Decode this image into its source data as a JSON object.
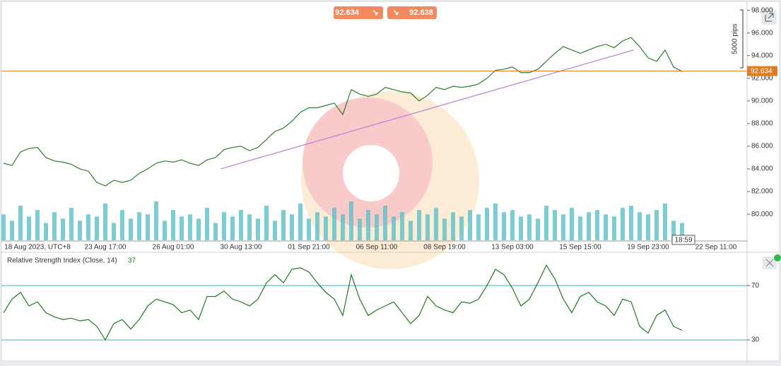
{
  "toolbar": {
    "sell": 92.634,
    "buy": 92.638
  },
  "chart_data": [
    {
      "type": "line",
      "categories": [
        null,
        null,
        null,
        null,
        "18 Aug 2023, UTC+8",
        null,
        null,
        null,
        null,
        null,
        null,
        null,
        "23 Aug 17:00",
        null,
        null,
        null,
        null,
        null,
        null,
        null,
        "26 Aug 01:00",
        null,
        null,
        null,
        null,
        null,
        null,
        null,
        "30 Aug 13:00",
        null,
        null,
        null,
        null,
        null,
        null,
        null,
        "01 Sep 21:00",
        null,
        null,
        null,
        null,
        null,
        null,
        null,
        "06 Sep 11:00",
        null,
        null,
        null,
        null,
        null,
        null,
        null,
        "08 Sep 19:00",
        null,
        null,
        null,
        null,
        null,
        null,
        null,
        "13 Sep 03:00",
        null,
        null,
        null,
        null,
        null,
        null,
        null,
        "15 Sep 15:00",
        null,
        null,
        null,
        null,
        null,
        null,
        null,
        "19 Sep 23:00",
        null,
        null,
        null,
        null,
        null,
        null,
        null,
        "22 Sep 11:00",
        null,
        null,
        null
      ],
      "values": [
        84.5,
        84.3,
        85.5,
        85.8,
        85.9,
        85.0,
        84.7,
        84.6,
        84.4,
        84.0,
        83.8,
        82.8,
        82.5,
        83.0,
        82.8,
        83.0,
        83.6,
        84.0,
        84.5,
        84.7,
        84.6,
        84.8,
        84.5,
        84.3,
        84.8,
        85.0,
        85.7,
        85.9,
        86.0,
        85.6,
        85.9,
        86.6,
        87.3,
        87.6,
        88.2,
        89.0,
        89.4,
        89.4,
        89.6,
        89.8,
        88.8,
        91.0,
        90.6,
        90.4,
        90.6,
        91.2,
        91.0,
        90.8,
        90.7,
        90.0,
        90.5,
        91.2,
        91.0,
        91.3,
        91.2,
        91.3,
        91.5,
        92.0,
        92.7,
        92.8,
        93.0,
        92.5,
        92.5,
        92.8,
        93.5,
        94.2,
        94.8,
        94.5,
        94.2,
        94.5,
        94.8,
        95.0,
        94.7,
        95.3,
        95.6,
        94.8,
        93.8,
        93.5,
        94.5,
        93.0,
        92.6,
        null,
        null,
        null,
        null,
        null,
        null,
        null
      ],
      "color": "#2e7d32",
      "volume": [
        60,
        45,
        80,
        55,
        70,
        40,
        65,
        50,
        75,
        45,
        60,
        55,
        85,
        40,
        70,
        50,
        65,
        60,
        90,
        45,
        70,
        55,
        60,
        50,
        75,
        40,
        65,
        55,
        70,
        60,
        50,
        80,
        45,
        70,
        60,
        85,
        50,
        65,
        55,
        75,
        60,
        90,
        50,
        70,
        60,
        80,
        55,
        65,
        45,
        70,
        60,
        75,
        50,
        65,
        55,
        70,
        60,
        75,
        85,
        65,
        70,
        55,
        60,
        50,
        80,
        70,
        60,
        75,
        55,
        65,
        70,
        60,
        55,
        75,
        80,
        65,
        60,
        70,
        85,
        45,
        40,
        null,
        null,
        null,
        null,
        null,
        null,
        null
      ],
      "volume_color": "#5bc0c8",
      "ylim": [
        77.7,
        98.6
      ],
      "yticks": [
        {
          "value": 80,
          "label": "80.000"
        },
        {
          "value": 82,
          "label": "82.000"
        },
        {
          "value": 84,
          "label": "84.000"
        },
        {
          "value": 86,
          "label": "86.000"
        },
        {
          "value": 88,
          "label": "88.000"
        },
        {
          "value": 90,
          "label": "90.000"
        },
        {
          "value": 92,
          "label": "92.000"
        },
        {
          "value": 94,
          "label": "94.000"
        },
        {
          "value": 96,
          "label": "96.000"
        },
        {
          "value": 98,
          "label": "98.000"
        }
      ],
      "last_price": 92.634,
      "last_price_color": "#e07b1f",
      "trendline": {
        "x": [
          25.6,
          74.3
        ],
        "y": [
          84.0,
          94.5
        ],
        "color": "#b77fd6"
      },
      "annotation": "5000 pips",
      "countdown": "18:59"
    },
    {
      "type": "line",
      "title": "Relative Strength Index (Close, 14)",
      "subtitle": "37",
      "values": [
        50,
        60,
        65,
        55,
        58,
        50,
        47,
        45,
        46,
        44,
        45,
        40,
        30,
        42,
        45,
        38,
        45,
        55,
        60,
        58,
        56,
        50,
        52,
        45,
        62,
        62,
        66,
        60,
        58,
        55,
        60,
        72,
        78,
        72,
        82,
        83,
        80,
        72,
        65,
        60,
        48,
        78,
        60,
        48,
        52,
        55,
        58,
        50,
        42,
        48,
        62,
        55,
        52,
        50,
        58,
        57,
        60,
        70,
        82,
        78,
        68,
        55,
        60,
        72,
        85,
        75,
        60,
        50,
        62,
        65,
        58,
        55,
        48,
        60,
        58,
        40,
        35,
        48,
        52,
        40,
        37,
        null,
        null,
        null,
        null,
        null,
        null,
        null
      ],
      "color": "#1e7b1e",
      "ylim": [
        16,
        94
      ],
      "yticks": [
        30,
        70
      ],
      "level_color": "#3bb7bd"
    }
  ]
}
